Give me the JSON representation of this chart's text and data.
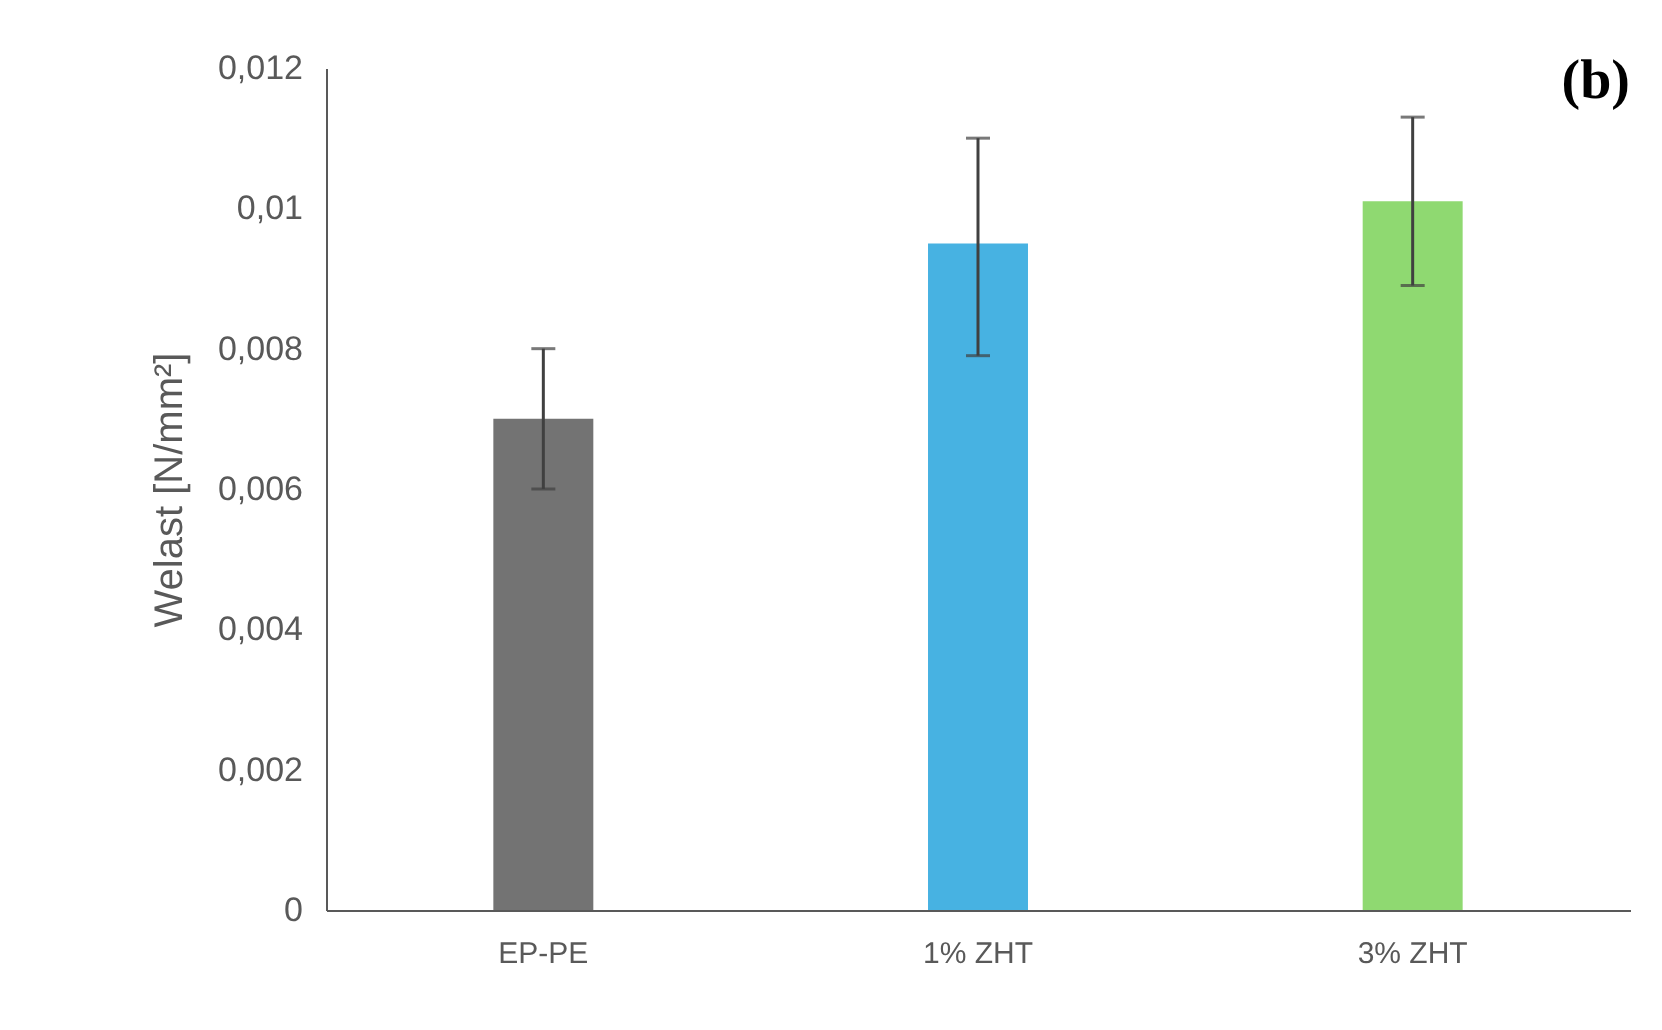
{
  "chart_data": {
    "type": "bar",
    "ylabel": "Welast [N/mm²]",
    "annotations": [
      "(b)"
    ],
    "categories": [
      "EP-PE",
      "1% ZHT",
      "3% ZHT"
    ],
    "values": [
      0.007,
      0.0095,
      0.0101
    ],
    "colors": [
      "#737373",
      "#47b2e2",
      "#8fd971"
    ],
    "errors": [
      [
        0.006,
        0.008
      ],
      [
        0.0079,
        0.011
      ],
      [
        0.0089,
        0.0113
      ]
    ],
    "ylim": [
      0,
      0.012
    ],
    "yticks": [
      0,
      {
        "value": 0.002,
        "label": "0,002"
      },
      {
        "value": 0.004,
        "label": "0,004"
      },
      {
        "value": 0.006,
        "label": "0,006"
      },
      {
        "value": 0.008,
        "label": "0,008"
      },
      {
        "value": 0.01,
        "label": "0,01"
      },
      {
        "value": 0.012,
        "label": "0,012"
      }
    ],
    "grid": false
  }
}
